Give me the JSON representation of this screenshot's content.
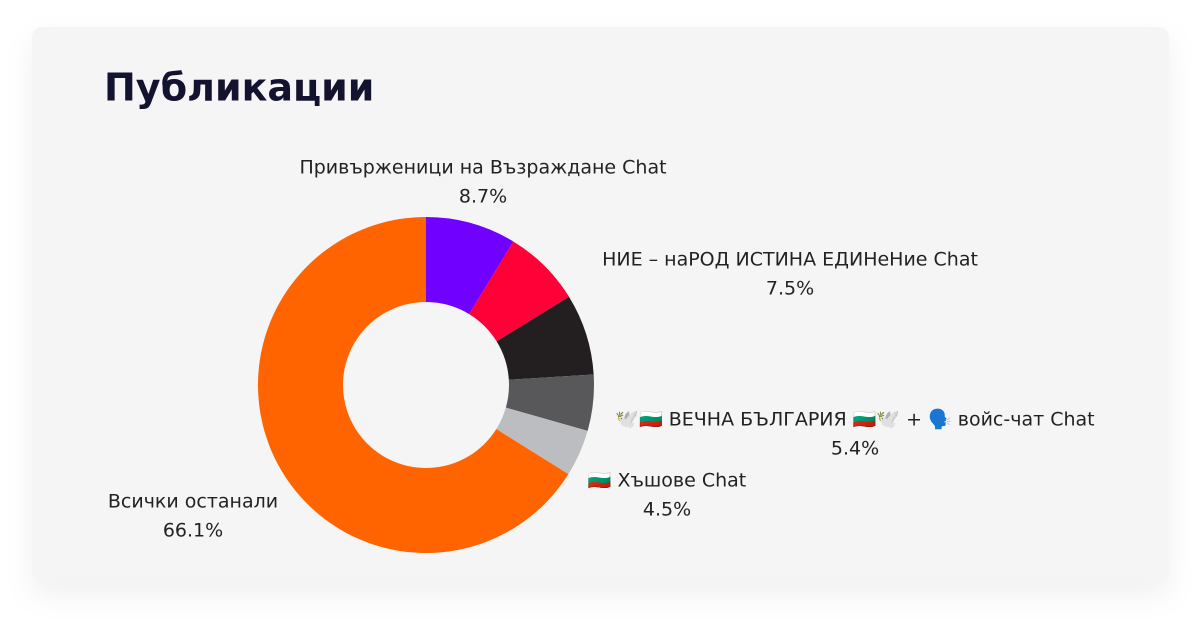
{
  "chart_data": {
    "type": "donut",
    "title": "Публикации",
    "categories": [
      "Привърженици на Възраждане Chat",
      "НИЕ – наРОД ИСТИНА ЕДИНеНие Chat",
      null,
      "🕊️🇧🇬 ВЕЧНА БЪЛГАРИЯ 🇧🇬🕊️ + 🗣️ войс-чат Chat",
      "🇧🇬 Хъшове Chat",
      "Всички останали"
    ],
    "values": [
      8.7,
      7.5,
      7.8,
      5.4,
      4.5,
      66.1
    ],
    "value_labels": [
      "8.7%",
      "7.5%",
      null,
      "5.4%",
      "4.5%",
      "66.1%"
    ],
    "colors": [
      "#7000ff",
      "#ff0037",
      "#231f20",
      "#58585a",
      "#bcbdc0",
      "#ff6400"
    ]
  }
}
